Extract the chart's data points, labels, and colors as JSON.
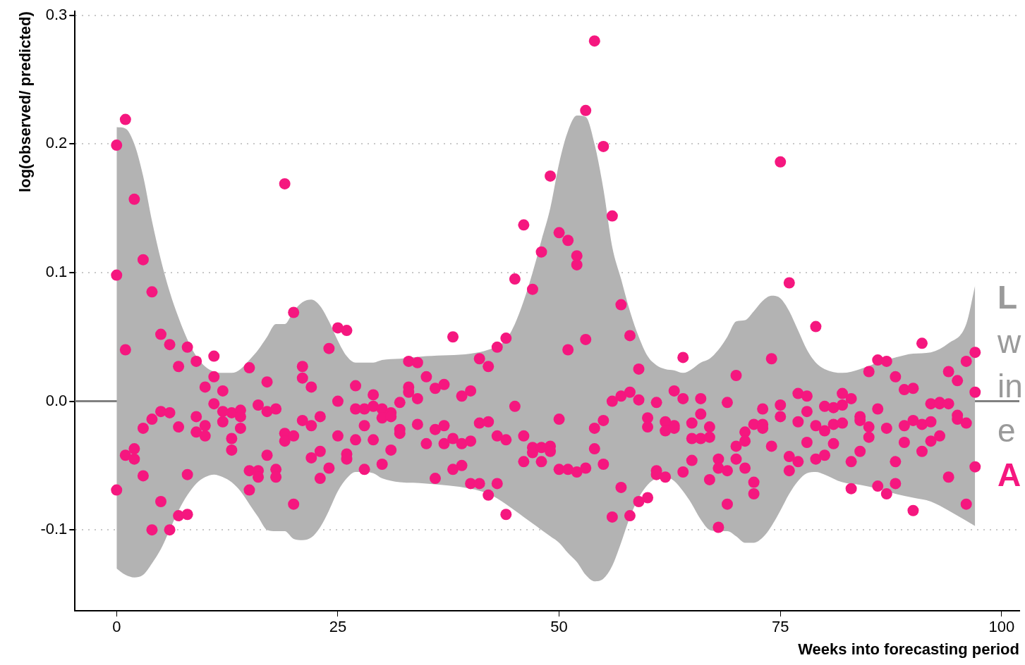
{
  "chart_data": {
    "type": "scatter",
    "xlabel": "Weeks into forecasting period",
    "ylabel": "log(observed/ predicted)",
    "xlim": [
      -4.7,
      102
    ],
    "ylim": [
      -0.163,
      0.303
    ],
    "xticks": [
      0,
      25,
      50,
      75,
      100
    ],
    "yticks": [
      {
        "value": -0.1,
        "label": "-0.1"
      },
      {
        "value": 0,
        "label": "0.0"
      },
      {
        "value": 0.1,
        "label": "0.1"
      },
      {
        "value": 0.2,
        "label": "0.2"
      },
      {
        "value": 0.3,
        "label": "0.3"
      }
    ],
    "grid": "y",
    "legend": false,
    "marker": "circle",
    "ref_lines": [
      {
        "axis": "y",
        "value": 0,
        "color": "#808080",
        "line_style": "solid"
      }
    ],
    "annotations": [
      "L",
      "w",
      "in",
      "e",
      "A"
    ],
    "series": [
      {
        "type": "line",
        "color": "#b3b3b3",
        "x": [
          0,
          1,
          2,
          3,
          4,
          5,
          6,
          7,
          8,
          9,
          10,
          11,
          12,
          13,
          14,
          15,
          16,
          17,
          18,
          19,
          20,
          21,
          22,
          23,
          24,
          25,
          26,
          27,
          28,
          29,
          30,
          32,
          35,
          40,
          42,
          44,
          45,
          46,
          47,
          48,
          49,
          50,
          51,
          52,
          53,
          54,
          55,
          56,
          57,
          58,
          59,
          60,
          61,
          62,
          63,
          64,
          65,
          66,
          67,
          68,
          69,
          70,
          71,
          72,
          73,
          74,
          75,
          76,
          77,
          78,
          79,
          80,
          82,
          84,
          86,
          88,
          90,
          92,
          94,
          96,
          97
        ],
        "values": [
          null,
          null,
          null,
          null,
          null,
          null,
          null,
          null,
          null,
          null,
          null,
          null,
          null,
          null,
          null,
          null,
          null,
          null,
          null,
          null,
          null,
          null,
          null,
          null,
          null,
          null,
          null,
          null,
          null,
          null,
          null,
          null,
          null,
          null,
          null,
          null,
          null,
          null,
          null,
          null,
          null,
          null,
          null,
          null,
          null,
          null,
          null,
          null,
          null,
          null,
          null,
          null,
          null,
          null,
          null,
          null,
          null,
          null,
          null,
          null,
          null,
          null,
          null,
          null,
          null,
          null,
          null,
          null,
          null,
          null,
          null,
          null,
          null,
          null,
          null,
          null,
          null,
          null,
          null,
          null,
          null
        ],
        "upper": [
          0.213,
          0.212,
          0.2,
          0.175,
          0.14,
          0.11,
          0.085,
          0.065,
          0.048,
          0.035,
          0.027,
          0.023,
          0.022,
          0.022,
          0.025,
          0.032,
          0.04,
          0.05,
          0.06,
          0.06,
          0.07,
          0.077,
          0.079,
          0.074,
          0.062,
          0.047,
          0.035,
          0.03,
          0.03,
          0.03,
          0.032,
          0.033,
          0.035,
          0.037,
          0.04,
          0.048,
          0.06,
          0.078,
          0.1,
          0.125,
          0.15,
          0.185,
          0.21,
          0.222,
          0.221,
          0.2,
          0.165,
          0.12,
          0.095,
          0.07,
          0.05,
          0.035,
          0.028,
          0.025,
          0.024,
          0.022,
          0.025,
          0.03,
          0.033,
          0.04,
          0.05,
          0.062,
          0.063,
          0.07,
          0.078,
          0.082,
          0.08,
          0.07,
          0.055,
          0.04,
          0.03,
          0.025,
          0.022,
          0.025,
          0.03,
          0.034,
          0.037,
          0.038,
          0.045,
          0.06,
          0.09
        ],
        "lower": [
          -0.13,
          -0.135,
          -0.137,
          -0.135,
          -0.126,
          -0.115,
          -0.1,
          -0.085,
          -0.073,
          -0.064,
          -0.059,
          -0.057,
          -0.059,
          -0.063,
          -0.07,
          -0.08,
          -0.09,
          -0.1,
          -0.101,
          -0.101,
          -0.107,
          -0.108,
          -0.106,
          -0.098,
          -0.085,
          -0.07,
          -0.06,
          -0.055,
          -0.055,
          -0.056,
          -0.06,
          -0.063,
          -0.064,
          -0.068,
          -0.072,
          -0.08,
          -0.085,
          -0.09,
          -0.095,
          -0.1,
          -0.105,
          -0.11,
          -0.118,
          -0.125,
          -0.135,
          -0.14,
          -0.138,
          -0.128,
          -0.11,
          -0.09,
          -0.075,
          -0.065,
          -0.06,
          -0.059,
          -0.062,
          -0.07,
          -0.08,
          -0.092,
          -0.1,
          -0.101,
          -0.101,
          -0.105,
          -0.11,
          -0.11,
          -0.106,
          -0.097,
          -0.085,
          -0.072,
          -0.062,
          -0.056,
          -0.055,
          -0.057,
          -0.063,
          -0.065,
          -0.068,
          -0.072,
          -0.075,
          -0.078,
          -0.085,
          -0.093,
          -0.097
        ]
      },
      {
        "color": "#f5177f",
        "x": [
          0,
          0,
          0,
          1,
          1,
          1,
          2,
          2,
          2,
          3,
          3,
          3,
          4,
          4,
          4,
          5,
          5,
          5,
          6,
          6,
          6,
          7,
          7,
          7,
          8,
          8,
          8,
          9,
          9,
          9,
          10,
          10,
          10,
          11,
          11,
          11,
          12,
          12,
          12,
          13,
          13,
          13,
          14,
          14,
          14,
          15,
          15,
          15,
          16,
          16,
          16,
          17,
          17,
          17,
          18,
          18,
          18,
          19,
          19,
          19,
          20,
          20,
          20,
          21,
          21,
          21,
          22,
          22,
          22,
          23,
          23,
          23,
          24,
          24,
          25,
          25,
          25,
          26,
          26,
          26,
          27,
          27,
          27,
          28,
          28,
          28,
          29,
          29,
          29,
          30,
          30,
          30,
          31,
          31,
          31,
          32,
          32,
          32,
          33,
          33,
          33,
          34,
          34,
          34,
          35,
          35,
          36,
          36,
          36,
          37,
          37,
          37,
          38,
          38,
          38,
          39,
          39,
          39,
          40,
          40,
          40,
          41,
          41,
          41,
          42,
          42,
          42,
          43,
          43,
          43,
          44,
          44,
          44,
          45,
          45,
          46,
          46,
          46,
          47,
          47,
          47,
          48,
          48,
          48,
          49,
          49,
          49,
          50,
          50,
          50,
          51,
          51,
          51,
          52,
          52,
          52,
          53,
          53,
          53,
          54,
          54,
          54,
          55,
          55,
          55,
          56,
          56,
          56,
          57,
          57,
          57,
          58,
          58,
          58,
          59,
          59,
          59,
          60,
          60,
          60,
          61,
          61,
          61,
          62,
          62,
          62,
          63,
          63,
          63,
          64,
          64,
          64,
          65,
          65,
          65,
          66,
          66,
          66,
          67,
          67,
          67,
          68,
          68,
          68,
          69,
          69,
          69,
          70,
          70,
          70,
          71,
          71,
          71,
          72,
          72,
          72,
          73,
          73,
          73,
          74,
          74,
          75,
          75,
          75,
          76,
          76,
          76,
          77,
          77,
          77,
          78,
          78,
          78,
          79,
          79,
          79,
          80,
          80,
          80,
          81,
          81,
          81,
          82,
          82,
          82,
          83,
          83,
          83,
          84,
          84,
          84,
          85,
          85,
          85,
          86,
          86,
          86,
          87,
          87,
          87,
          88,
          88,
          88,
          89,
          89,
          89,
          90,
          90,
          90,
          91,
          91,
          91,
          92,
          92,
          92,
          93,
          93,
          93,
          94,
          94,
          94,
          95,
          95,
          95,
          96,
          96,
          96,
          97,
          97,
          97
        ],
        "values": [
          0.199,
          0.098,
          -0.069,
          0.219,
          0.04,
          -0.042,
          0.157,
          -0.037,
          -0.045,
          0.11,
          -0.021,
          -0.058,
          0.085,
          -0.014,
          -0.1,
          0.052,
          -0.008,
          -0.078,
          0.044,
          -0.009,
          -0.1,
          0.027,
          -0.02,
          -0.089,
          0.042,
          -0.057,
          -0.088,
          0.031,
          -0.012,
          -0.024,
          0.011,
          -0.019,
          -0.027,
          0.035,
          0.019,
          -0.002,
          0.008,
          -0.008,
          -0.016,
          -0.009,
          -0.029,
          -0.038,
          -0.007,
          -0.012,
          -0.021,
          0.026,
          -0.054,
          -0.069,
          -0.003,
          -0.054,
          -0.059,
          0.015,
          -0.008,
          -0.042,
          -0.006,
          -0.053,
          -0.059,
          0.169,
          -0.025,
          -0.031,
          0.069,
          -0.027,
          -0.08,
          0.027,
          0.018,
          -0.015,
          0.011,
          -0.019,
          -0.044,
          -0.012,
          -0.039,
          -0.06,
          0.041,
          -0.052,
          0.057,
          0.0,
          -0.027,
          0.055,
          -0.041,
          -0.045,
          0.012,
          -0.006,
          -0.03,
          -0.006,
          -0.019,
          -0.053,
          0.005,
          -0.004,
          -0.03,
          -0.006,
          -0.013,
          -0.049,
          -0.009,
          -0.012,
          -0.038,
          -0.001,
          -0.022,
          -0.025,
          0.031,
          0.011,
          0.007,
          0.03,
          0.002,
          -0.018,
          0.019,
          -0.033,
          0.01,
          -0.022,
          -0.06,
          0.013,
          -0.019,
          -0.033,
          0.05,
          -0.029,
          -0.053,
          0.004,
          -0.033,
          -0.05,
          0.008,
          -0.031,
          -0.064,
          0.033,
          -0.017,
          -0.064,
          0.027,
          -0.016,
          -0.073,
          0.042,
          -0.027,
          -0.064,
          0.049,
          -0.03,
          -0.088,
          0.095,
          -0.004,
          0.137,
          -0.027,
          -0.047,
          0.087,
          -0.036,
          -0.04,
          0.116,
          -0.036,
          -0.047,
          0.175,
          -0.035,
          -0.039,
          0.131,
          -0.014,
          -0.053,
          0.125,
          0.04,
          -0.053,
          0.113,
          0.106,
          -0.055,
          0.226,
          0.048,
          -0.052,
          0.28,
          -0.021,
          -0.037,
          0.198,
          -0.015,
          -0.049,
          0.144,
          0.0,
          -0.09,
          0.075,
          0.004,
          -0.067,
          0.051,
          0.007,
          -0.089,
          0.025,
          0.001,
          -0.078,
          -0.013,
          -0.02,
          -0.075,
          -0.001,
          -0.054,
          -0.057,
          -0.016,
          -0.023,
          -0.059,
          0.008,
          -0.019,
          -0.021,
          0.034,
          0.002,
          -0.055,
          -0.017,
          -0.029,
          -0.046,
          0.002,
          -0.01,
          -0.029,
          -0.02,
          -0.028,
          -0.061,
          -0.045,
          -0.052,
          -0.098,
          -0.001,
          -0.054,
          -0.08,
          0.02,
          -0.035,
          -0.045,
          -0.024,
          -0.031,
          -0.052,
          -0.018,
          -0.063,
          -0.072,
          -0.006,
          -0.018,
          -0.021,
          0.033,
          -0.035,
          0.186,
          -0.003,
          -0.012,
          0.092,
          -0.043,
          -0.054,
          0.006,
          -0.016,
          -0.047,
          0.004,
          -0.008,
          -0.032,
          0.058,
          -0.019,
          -0.045,
          -0.004,
          -0.023,
          -0.042,
          -0.005,
          -0.018,
          -0.033,
          0.006,
          -0.003,
          -0.017,
          0.002,
          -0.047,
          -0.068,
          -0.012,
          -0.015,
          -0.039,
          0.023,
          -0.02,
          -0.028,
          0.032,
          -0.006,
          -0.066,
          0.031,
          -0.021,
          -0.072,
          0.019,
          -0.047,
          -0.064,
          0.009,
          -0.019,
          -0.032,
          0.01,
          -0.015,
          -0.085,
          0.045,
          -0.018,
          -0.039,
          -0.002,
          -0.016,
          -0.031,
          -0.001,
          -0.002,
          -0.027,
          0.023,
          -0.002,
          -0.059,
          0.016,
          -0.011,
          -0.014,
          0.031,
          -0.017,
          -0.08,
          0.038,
          0.007,
          -0.051
        ]
      }
    ]
  }
}
